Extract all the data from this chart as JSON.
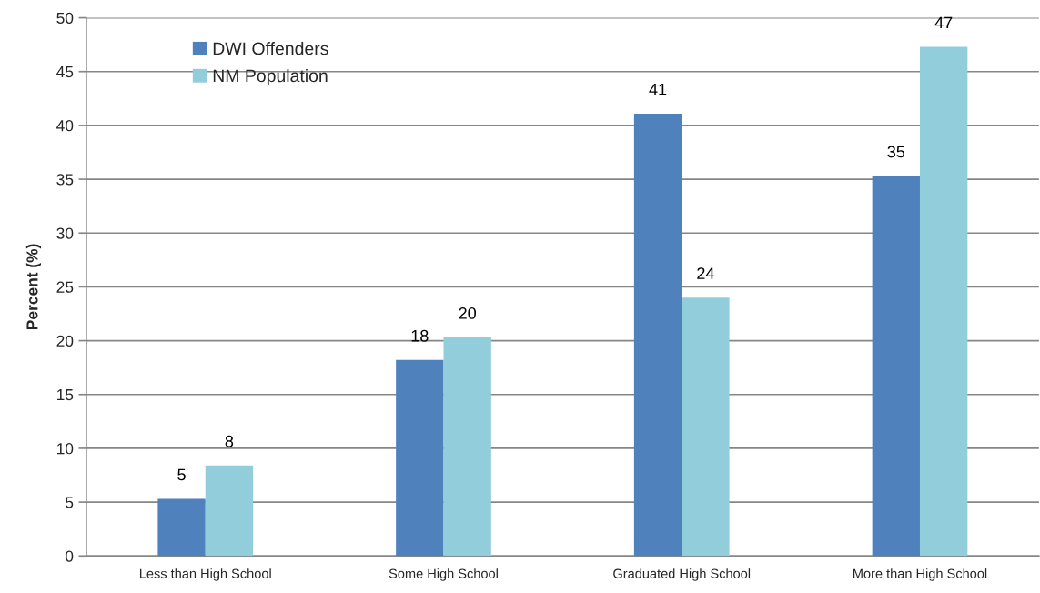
{
  "chart_data": {
    "type": "bar",
    "ylabel": "Percent (%)",
    "categories": [
      "Less than High School",
      "Some High School",
      "Graduated High School",
      "More than High School"
    ],
    "series": [
      {
        "name": "DWI Offenders",
        "color": "#4f81bd",
        "values": [
          5.3,
          18.2,
          41.1,
          35.3
        ],
        "value_labels": [
          "5",
          "18",
          "41",
          "35"
        ]
      },
      {
        "name": "NM Population",
        "color": "#92cddc",
        "values": [
          8.4,
          20.3,
          24.0,
          47.3
        ],
        "value_labels": [
          "8",
          "20",
          "24",
          "47"
        ]
      }
    ],
    "ylim": [
      0,
      50
    ],
    "yticks": [
      0,
      5,
      10,
      15,
      20,
      25,
      30,
      35,
      40,
      45,
      50
    ],
    "grid": "y",
    "legend": "top left"
  }
}
